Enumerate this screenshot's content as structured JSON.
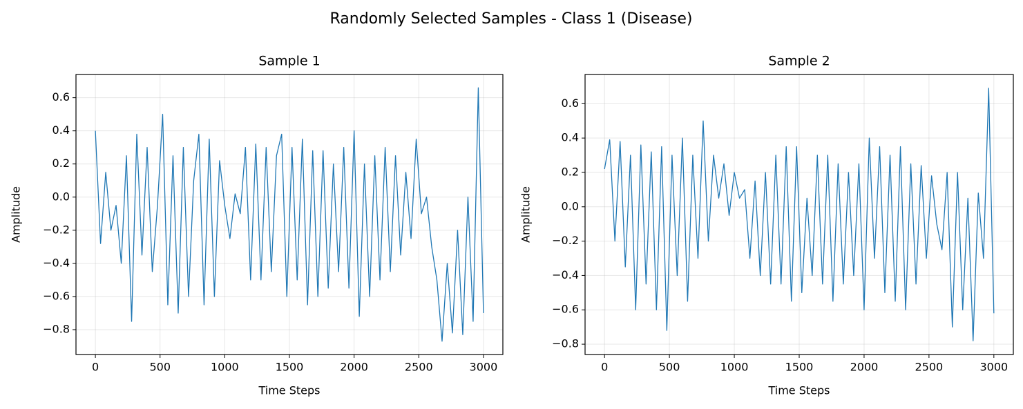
{
  "title": "Randomly Selected Samples - Class 1 (Disease)",
  "chart_data": [
    {
      "type": "line",
      "title": "Sample 1",
      "x_label": "Time Steps",
      "y_label": "Amplitude",
      "grid": true,
      "xlim": [
        -150,
        3150
      ],
      "ylim": [
        -0.95,
        0.74
      ],
      "xticks": [
        0,
        500,
        1000,
        1500,
        2000,
        2500,
        3000
      ],
      "yticks": [
        {
          "value": -0.8,
          "label": "−0.8"
        },
        {
          "value": -0.6,
          "label": "−0.6"
        },
        {
          "value": -0.4,
          "label": "−0.4"
        },
        {
          "value": -0.2,
          "label": "−0.2"
        },
        {
          "value": 0,
          "label": "0.0"
        },
        0.2,
        0.4,
        0.6
      ],
      "x": [
        0,
        40,
        80,
        120,
        160,
        200,
        240,
        280,
        320,
        360,
        400,
        440,
        480,
        520,
        560,
        600,
        640,
        680,
        720,
        760,
        800,
        840,
        880,
        920,
        960,
        1000,
        1040,
        1080,
        1120,
        1160,
        1200,
        1240,
        1280,
        1320,
        1360,
        1400,
        1440,
        1480,
        1520,
        1560,
        1600,
        1640,
        1680,
        1720,
        1760,
        1800,
        1840,
        1880,
        1920,
        1960,
        2000,
        2040,
        2080,
        2120,
        2160,
        2200,
        2240,
        2280,
        2320,
        2360,
        2400,
        2440,
        2480,
        2520,
        2560,
        2600,
        2640,
        2680,
        2720,
        2760,
        2800,
        2840,
        2880,
        2920,
        2960,
        3000
      ],
      "series": [
        {
          "color": "#1f77b4",
          "values": [
            0.4,
            -0.28,
            0.15,
            -0.2,
            -0.05,
            -0.4,
            0.25,
            -0.75,
            0.38,
            -0.35,
            0.3,
            -0.45,
            -0.05,
            0.5,
            -0.65,
            0.25,
            -0.7,
            0.3,
            -0.6,
            0.1,
            0.38,
            -0.65,
            0.35,
            -0.6,
            0.22,
            -0.05,
            -0.25,
            0.02,
            -0.1,
            0.3,
            -0.5,
            0.32,
            -0.5,
            0.3,
            -0.45,
            0.25,
            0.38,
            -0.6,
            0.3,
            -0.5,
            0.35,
            -0.65,
            0.28,
            -0.6,
            0.28,
            -0.55,
            0.2,
            -0.45,
            0.3,
            -0.55,
            0.4,
            -0.72,
            0.2,
            -0.6,
            0.25,
            -0.5,
            0.3,
            -0.45,
            0.25,
            -0.35,
            0.15,
            -0.25,
            0.35,
            -0.1,
            0.0,
            -0.3,
            -0.5,
            -0.87,
            -0.4,
            -0.82,
            -0.2,
            -0.83,
            0.0,
            -0.75,
            0.66,
            -0.7
          ]
        }
      ]
    },
    {
      "type": "line",
      "title": "Sample 2",
      "x_label": "Time Steps",
      "y_label": "Amplitude",
      "grid": true,
      "xlim": [
        -150,
        3150
      ],
      "ylim": [
        -0.86,
        0.77
      ],
      "xticks": [
        0,
        500,
        1000,
        1500,
        2000,
        2500,
        3000
      ],
      "yticks": [
        {
          "value": -0.8,
          "label": "−0.8"
        },
        {
          "value": -0.6,
          "label": "−0.6"
        },
        {
          "value": -0.4,
          "label": "−0.4"
        },
        {
          "value": -0.2,
          "label": "−0.2"
        },
        {
          "value": 0,
          "label": "0.0"
        },
        0.2,
        0.4,
        0.6
      ],
      "x": [
        0,
        40,
        80,
        120,
        160,
        200,
        240,
        280,
        320,
        360,
        400,
        440,
        480,
        520,
        560,
        600,
        640,
        680,
        720,
        760,
        800,
        840,
        880,
        920,
        960,
        1000,
        1040,
        1080,
        1120,
        1160,
        1200,
        1240,
        1280,
        1320,
        1360,
        1400,
        1440,
        1480,
        1520,
        1560,
        1600,
        1640,
        1680,
        1720,
        1760,
        1800,
        1840,
        1880,
        1920,
        1960,
        2000,
        2040,
        2080,
        2120,
        2160,
        2200,
        2240,
        2280,
        2320,
        2360,
        2400,
        2440,
        2480,
        2520,
        2560,
        2600,
        2640,
        2680,
        2720,
        2760,
        2800,
        2840,
        2880,
        2920,
        2960,
        3000
      ],
      "series": [
        {
          "color": "#1f77b4",
          "values": [
            0.22,
            0.39,
            -0.2,
            0.38,
            -0.35,
            0.3,
            -0.6,
            0.36,
            -0.45,
            0.32,
            -0.6,
            0.35,
            -0.72,
            0.3,
            -0.4,
            0.4,
            -0.55,
            0.3,
            -0.3,
            0.5,
            -0.2,
            0.3,
            0.05,
            0.25,
            -0.05,
            0.2,
            0.05,
            0.1,
            -0.3,
            0.15,
            -0.4,
            0.2,
            -0.45,
            0.3,
            -0.45,
            0.35,
            -0.55,
            0.35,
            -0.5,
            0.05,
            -0.4,
            0.3,
            -0.45,
            0.3,
            -0.55,
            0.25,
            -0.45,
            0.2,
            -0.4,
            0.25,
            -0.6,
            0.4,
            -0.3,
            0.35,
            -0.5,
            0.3,
            -0.55,
            0.35,
            -0.6,
            0.25,
            -0.45,
            0.24,
            -0.3,
            0.18,
            -0.1,
            -0.25,
            0.2,
            -0.7,
            0.2,
            -0.6,
            0.05,
            -0.78,
            0.08,
            -0.3,
            0.69,
            -0.62
          ]
        }
      ]
    }
  ]
}
